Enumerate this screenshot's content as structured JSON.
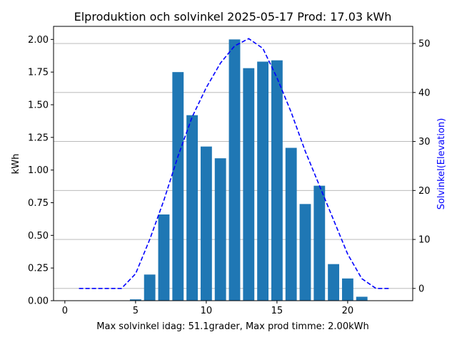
{
  "chart_data": {
    "type": "bar",
    "title": "Elproduktion och solvinkel 2025-05-17 Prod: 17.03 kWh",
    "xlabel": "Max solvinkel idag: 51.1grader, Max prod timme: 2.00kWh",
    "ylabel": "kWh",
    "ylabel_right": "Solvinkel(Elevation)",
    "xlim": [
      -0.8,
      24.6
    ],
    "ylim": [
      0,
      2.1
    ],
    "ylim_right": [
      -2.5,
      53.5
    ],
    "xticks": [
      0,
      5,
      10,
      15,
      20
    ],
    "yticks": [
      0.0,
      0.25,
      0.5,
      0.75,
      1.0,
      1.25,
      1.5,
      1.75,
      2.0
    ],
    "yticks_right": [
      0,
      10,
      20,
      30,
      40,
      50
    ],
    "grid": "horizontal lines at right-axis ticks",
    "colors": {
      "bars": "#1f77b4",
      "line": "#0000ff",
      "grid": "#b0b0b0"
    },
    "bars": {
      "x": [
        5,
        6,
        7,
        8,
        9,
        10,
        11,
        12,
        13,
        14,
        15,
        16,
        17,
        18,
        19,
        20,
        21
      ],
      "values": [
        0.01,
        0.2,
        0.66,
        1.75,
        1.42,
        1.18,
        1.09,
        2.0,
        1.78,
        1.83,
        1.84,
        1.17,
        0.74,
        0.88,
        0.28,
        0.17,
        0.03
      ]
    },
    "line": {
      "style": "dashed",
      "axis": "right",
      "x": [
        1,
        2,
        3,
        4,
        5,
        6,
        7,
        8,
        9,
        10,
        11,
        12,
        13,
        14,
        15,
        16,
        17,
        18,
        19,
        20,
        21,
        22,
        23
      ],
      "values": [
        0,
        0,
        0,
        0,
        3,
        10,
        18,
        27,
        35,
        41,
        46,
        49.5,
        51,
        49,
        43,
        36,
        28,
        21,
        14,
        7,
        2,
        0,
        0
      ]
    }
  }
}
